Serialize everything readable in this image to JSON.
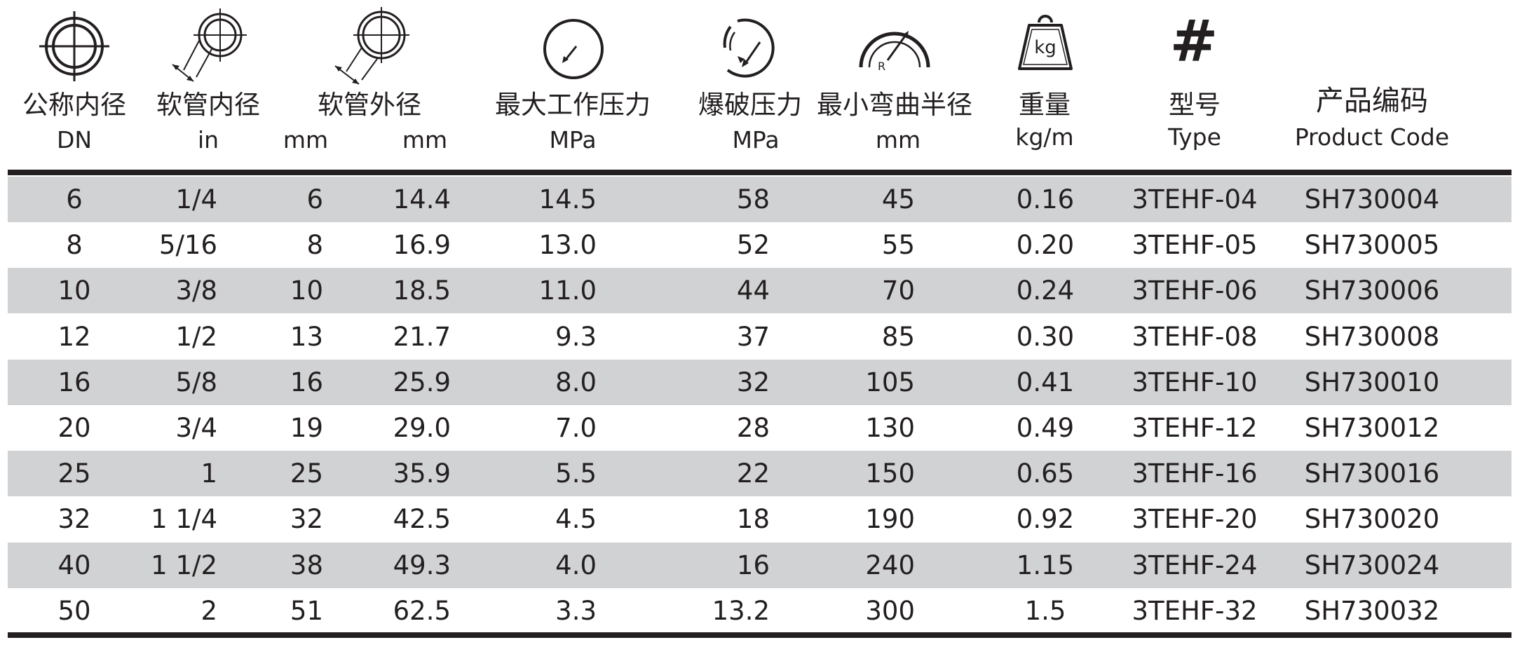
{
  "headers": {
    "nominal_id": {
      "label": "公称内径",
      "unit": "DN"
    },
    "hose_id": {
      "label": "软管内径",
      "unit": "in"
    },
    "hose_od": {
      "label": "软管外径",
      "unit_a": "mm",
      "unit_b": "mm"
    },
    "max_pressure": {
      "label": "最大工作压力",
      "unit": "MPa"
    },
    "burst": {
      "label": "爆破压力",
      "unit": "MPa"
    },
    "bend_radius": {
      "label": "最小弯曲半径",
      "unit": "mm"
    },
    "weight": {
      "label": "重量",
      "unit": "kg/m"
    },
    "type": {
      "label": "型号",
      "unit": "Type"
    },
    "code": {
      "label": "产品编码",
      "unit": "Product Code"
    }
  },
  "icons": {
    "nominal_id": "nominal-diameter-icon",
    "hose_id": "inner-diameter-icon",
    "hose_od": "outer-diameter-icon",
    "max_pressure": "pressure-gauge-icon",
    "burst": "burst-gauge-icon",
    "bend_radius": "bend-radius-icon",
    "weight": "weight-icon",
    "weight_glyph": "kg",
    "type": "hash-icon",
    "type_glyph": "#"
  },
  "colors": {
    "text": "#231f20",
    "stripe": "#d1d2d3",
    "rule": "#231f20"
  },
  "rows": [
    {
      "dn": "6",
      "inch": "1/4",
      "id_mm": "6",
      "od_mm": "14.4",
      "wp": "14.5",
      "bp": "58",
      "br": "45",
      "wt": "0.16",
      "type": "3TEHF-04",
      "code": "SH730004"
    },
    {
      "dn": "8",
      "inch": "5/16",
      "id_mm": "8",
      "od_mm": "16.9",
      "wp": "13.0",
      "bp": "52",
      "br": "55",
      "wt": "0.20",
      "type": "3TEHF-05",
      "code": "SH730005"
    },
    {
      "dn": "10",
      "inch": "3/8",
      "id_mm": "10",
      "od_mm": "18.5",
      "wp": "11.0",
      "bp": "44",
      "br": "70",
      "wt": "0.24",
      "type": "3TEHF-06",
      "code": "SH730006"
    },
    {
      "dn": "12",
      "inch": "1/2",
      "id_mm": "13",
      "od_mm": "21.7",
      "wp": "9.3",
      "bp": "37",
      "br": "85",
      "wt": "0.30",
      "type": "3TEHF-08",
      "code": "SH730008"
    },
    {
      "dn": "16",
      "inch": "5/8",
      "id_mm": "16",
      "od_mm": "25.9",
      "wp": "8.0",
      "bp": "32",
      "br": "105",
      "wt": "0.41",
      "type": "3TEHF-10",
      "code": "SH730010"
    },
    {
      "dn": "20",
      "inch": "3/4",
      "id_mm": "19",
      "od_mm": "29.0",
      "wp": "7.0",
      "bp": "28",
      "br": "130",
      "wt": "0.49",
      "type": "3TEHF-12",
      "code": "SH730012"
    },
    {
      "dn": "25",
      "inch": "1",
      "id_mm": "25",
      "od_mm": "35.9",
      "wp": "5.5",
      "bp": "22",
      "br": "150",
      "wt": "0.65",
      "type": "3TEHF-16",
      "code": "SH730016"
    },
    {
      "dn": "32",
      "inch": "1 1/4",
      "id_mm": "32",
      "od_mm": "42.5",
      "wp": "4.5",
      "bp": "18",
      "br": "190",
      "wt": "0.92",
      "type": "3TEHF-20",
      "code": "SH730020"
    },
    {
      "dn": "40",
      "inch": "1 1/2",
      "id_mm": "38",
      "od_mm": "49.3",
      "wp": "4.0",
      "bp": "16",
      "br": "240",
      "wt": "1.15",
      "type": "3TEHF-24",
      "code": "SH730024"
    },
    {
      "dn": "50",
      "inch": "2",
      "id_mm": "51",
      "od_mm": "62.5",
      "wp": "3.3",
      "bp": "13.2",
      "br": "300",
      "wt": "1.5",
      "type": "3TEHF-32",
      "code": "SH730032"
    }
  ]
}
